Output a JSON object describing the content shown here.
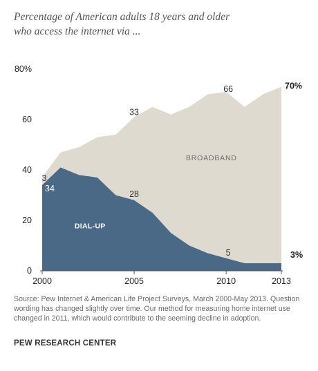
{
  "title_lines": [
    "Percentage of American adults 18 years and older",
    "who access the internet via ..."
  ],
  "chart_data": {
    "type": "area",
    "title": "Percentage of American adults 18 years and older who access the internet via ...",
    "x": [
      2000,
      2001,
      2002,
      2003,
      2004,
      2005,
      2006,
      2007,
      2008,
      2009,
      2010,
      2011,
      2012,
      2013
    ],
    "xticks": [
      "2000",
      "2005",
      "2010",
      "2013"
    ],
    "yticks": [
      "0",
      "20",
      "40",
      "60",
      "80%"
    ],
    "ylim": [
      0,
      80
    ],
    "series": [
      {
        "name": "DIAL-UP",
        "color": "#4a6986",
        "values": [
          34,
          41,
          38,
          37,
          30,
          28,
          23,
          15,
          10,
          7,
          5,
          3,
          3,
          3
        ]
      },
      {
        "name": "BROADBAND",
        "color": "#dedad0",
        "values": [
          3,
          6,
          11,
          16,
          24,
          33,
          42,
          47,
          55,
          63,
          66,
          62,
          67,
          70
        ]
      }
    ],
    "annotations": [
      {
        "text": "3",
        "x": 2000,
        "y": 37
      },
      {
        "text": "34",
        "x": 2000,
        "y": 34
      },
      {
        "text": "33",
        "x": 2005,
        "y": 61
      },
      {
        "text": "28",
        "x": 2005,
        "y": 28
      },
      {
        "text": "66",
        "x": 2010,
        "y": 71
      },
      {
        "text": "5",
        "x": 2010,
        "y": 5
      },
      {
        "text": "70%",
        "x": 2013,
        "y": 73
      },
      {
        "text": "3%",
        "x": 2013,
        "y": 3
      }
    ]
  },
  "source": "Source: Pew Internet & American Life Project Surveys, March 2000-May 2013. Question wording has changed slightly over time. Our method for measuring home internet use changed in 2011, which would contribute to the seeming decline in adoption.",
  "brand": "PEW RESEARCH CENTER"
}
